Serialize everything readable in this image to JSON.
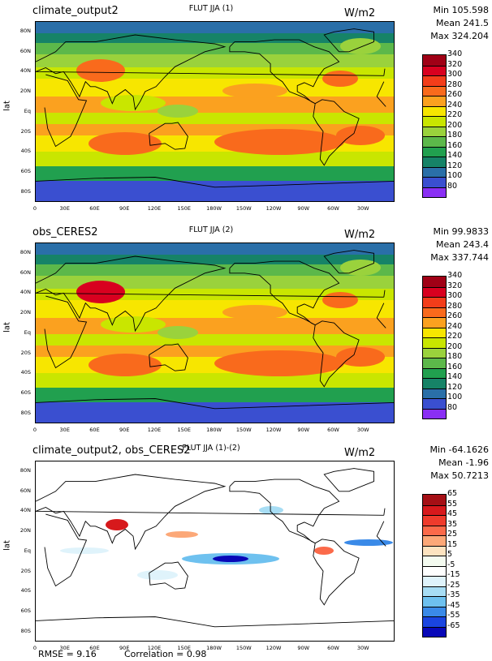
{
  "panels": [
    {
      "title": "climate_output2",
      "center": "FLUT JJA (1)",
      "units": "W/m2",
      "stats": {
        "min": "Min 105.598",
        "mean": "Mean 241.5",
        "max": "Max 324.204"
      },
      "colorbar": {
        "labels": [
          "340",
          "320",
          "300",
          "280",
          "260",
          "240",
          "220",
          "200",
          "180",
          "160",
          "140",
          "120",
          "100",
          "80"
        ],
        "colors": [
          "#a00016",
          "#d8001f",
          "#f33d1a",
          "#f96a1c",
          "#fba11f",
          "#f7e600",
          "#c9e600",
          "#9ad23c",
          "#5cb84a",
          "#21a04f",
          "#168367",
          "#2a6fa8",
          "#3a4fd0",
          "#8a2ff4"
        ]
      }
    },
    {
      "title": "obs_CERES2",
      "center": "FLUT JJA (2)",
      "units": "W/m2",
      "stats": {
        "min": "Min 99.9833",
        "mean": "Mean 243.4",
        "max": "Max 337.744"
      },
      "colorbar": {
        "labels": [
          "340",
          "320",
          "300",
          "280",
          "260",
          "240",
          "220",
          "200",
          "180",
          "160",
          "140",
          "120",
          "100",
          "80"
        ],
        "colors": [
          "#a00016",
          "#d8001f",
          "#f33d1a",
          "#f96a1c",
          "#fba11f",
          "#f7e600",
          "#c9e600",
          "#9ad23c",
          "#5cb84a",
          "#21a04f",
          "#168367",
          "#2a6fa8",
          "#3a4fd0",
          "#8a2ff4"
        ]
      }
    },
    {
      "title": "climate_output2, obs_CERES2",
      "center": "FLUT JJA (1)-(2)",
      "units": "W/m2",
      "stats": {
        "min": "Min -64.1626",
        "mean": "Mean -1.96",
        "max": "Max 50.7213"
      },
      "colorbar": {
        "labels": [
          "65",
          "55",
          "45",
          "35",
          "25",
          "15",
          "5",
          "-5",
          "-15",
          "-25",
          "-35",
          "-45",
          "-55",
          "-65"
        ],
        "colors": [
          "#a50f15",
          "#d7191c",
          "#ef3b2c",
          "#fb6a4a",
          "#fca878",
          "#fde3c0",
          "#f4fbf0",
          "#ffffff",
          "#dff3fb",
          "#a7ddf4",
          "#6ec1ef",
          "#3a8ae8",
          "#1a45e0",
          "#0808b8"
        ]
      }
    }
  ],
  "axes": {
    "lat_label": "lat",
    "lat_ticks": [
      "80N",
      "60N",
      "40N",
      "20N",
      "Eq",
      "20S",
      "40S",
      "60S",
      "80S"
    ],
    "lon_ticks": [
      "0",
      "30E",
      "60E",
      "90E",
      "120E",
      "150E",
      "180W",
      "150W",
      "120W",
      "90W",
      "60W",
      "30W"
    ]
  },
  "footer": {
    "rmse": "RMSE = 9.16",
    "correlation": "Correlation = 0.98"
  }
}
